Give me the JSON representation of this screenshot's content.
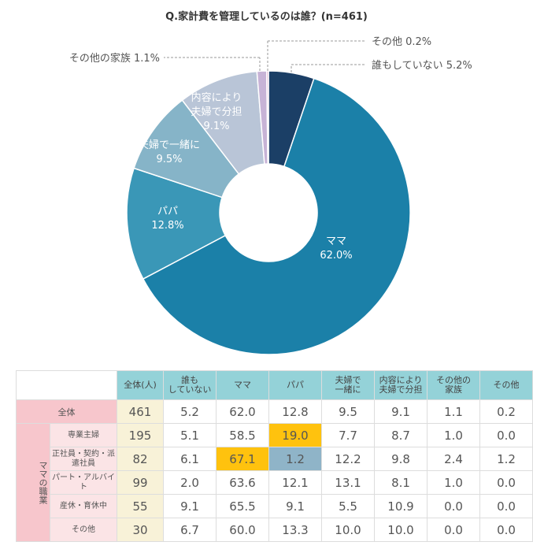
{
  "chart_data": {
    "type": "pie",
    "title": "Q.家計費を管理しているのは誰？(n=461)",
    "slices": [
      {
        "label": "誰もしていない",
        "value": 5.2,
        "color": "#1b3f66"
      },
      {
        "label": "ママ",
        "value": 62.0,
        "color": "#1b80a8"
      },
      {
        "label": "パパ",
        "value": 12.8,
        "color": "#3a97b7"
      },
      {
        "label": "夫婦で一緒に",
        "value": 9.5,
        "color": "#86b4c8"
      },
      {
        "label": "内容により夫婦で分担",
        "value": 9.1,
        "color": "#b9c5d7"
      },
      {
        "label": "その他の家族",
        "value": 1.1,
        "color": "#c7b3d6"
      },
      {
        "label": "その他",
        "value": 0.2,
        "color": "#d99bc2"
      }
    ],
    "inside_labels": [
      {
        "lines": [
          "ママ",
          "62.0%"
        ]
      },
      {
        "lines": [
          "パパ",
          "12.8%"
        ]
      },
      {
        "lines": [
          "夫婦で一緒に",
          "9.5%"
        ]
      },
      {
        "lines": [
          "内容により",
          "夫婦で分担",
          "9.1%"
        ]
      }
    ],
    "outside_labels": [
      "その他 0.2%",
      "誰もしていない 5.2%",
      "その他の家族 1.1%"
    ]
  },
  "table": {
    "headers": [
      "全体(人)",
      "誰も\nしていない",
      "ママ",
      "パパ",
      "夫婦で\n一緒に",
      "内容により\n夫婦で分担",
      "その他の\n家族",
      "その他"
    ],
    "total_label": "全体",
    "total": [
      "461",
      "5.2",
      "62.0",
      "12.8",
      "9.5",
      "9.1",
      "1.1",
      "0.2"
    ],
    "group_label": "ママの職業",
    "rows": [
      {
        "label": "専業主婦",
        "values": [
          "195",
          "5.1",
          "58.5",
          "19.0",
          "7.7",
          "8.7",
          "1.0",
          "0.0"
        ]
      },
      {
        "label": "正社員・契約・派遣社員",
        "values": [
          "82",
          "6.1",
          "67.1",
          "1.2",
          "12.2",
          "9.8",
          "2.4",
          "1.2"
        ]
      },
      {
        "label": "パート・アルバイト",
        "values": [
          "99",
          "2.0",
          "63.6",
          "12.1",
          "13.1",
          "8.1",
          "1.0",
          "0.0"
        ]
      },
      {
        "label": "産休・育休中",
        "values": [
          "55",
          "9.1",
          "65.5",
          "9.1",
          "5.5",
          "10.9",
          "0.0",
          "0.0"
        ]
      },
      {
        "label": "その他",
        "values": [
          "30",
          "6.7",
          "60.0",
          "13.3",
          "10.0",
          "10.0",
          "0.0",
          "0.0"
        ]
      }
    ]
  }
}
